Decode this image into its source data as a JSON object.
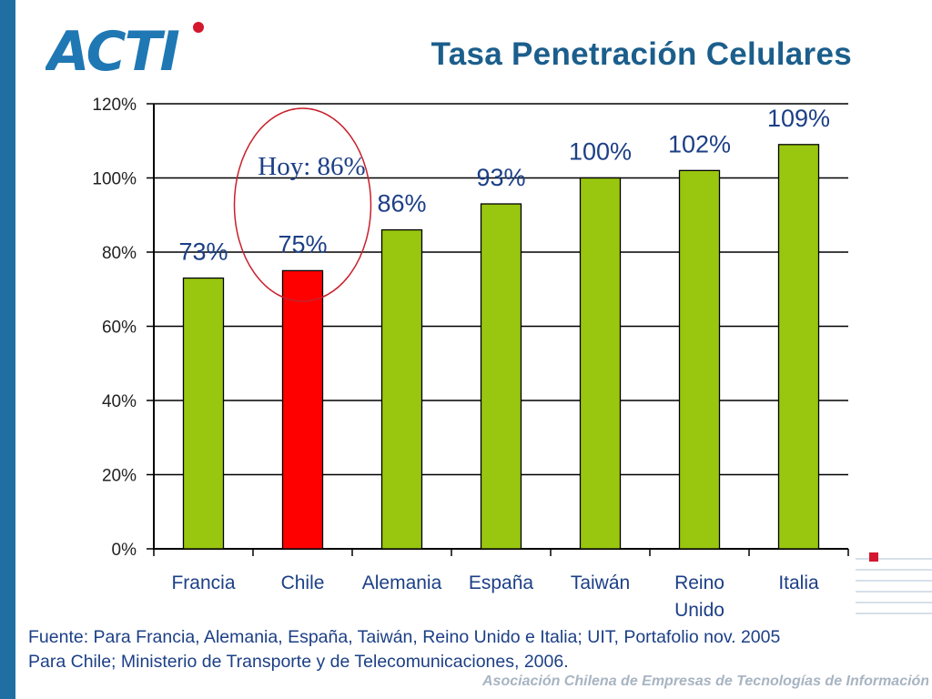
{
  "slide": {
    "title": "Tasa Penetración Celulares",
    "logo_text": "ACTI",
    "source_line1": "Fuente: Para Francia, Alemania, España, Taiwán, Reino Unido e Italia; UIT, Portafolio nov. 2005",
    "source_line2": "Para Chile; Ministerio de Transporte y de Telecomunicaciones, 2006.",
    "footer": "Asociación Chilena de Empresas de Tecnologías de Información A.G."
  },
  "colors": {
    "default_bar": "#99c60f",
    "highlight_bar": "#ff0000",
    "title": "#1b5e8c",
    "label": "#1c3f86",
    "annotation_circle": "#c8202c",
    "accent": "#d3172e"
  },
  "chart_data": {
    "type": "bar",
    "categories": [
      "Francia",
      "Chile",
      "Alemania",
      "España",
      "Taiwán",
      "Reino Unido",
      "Italia"
    ],
    "values": [
      73,
      75,
      86,
      93,
      100,
      102,
      109
    ],
    "data_labels": [
      "73%",
      "75%",
      "86%",
      "93%",
      "100%",
      "102%",
      "109%"
    ],
    "highlight_category": "Chile",
    "ylim": [
      0,
      120
    ],
    "yticks": [
      0,
      20,
      40,
      60,
      80,
      100,
      120
    ],
    "ytick_labels": [
      "0%",
      "20%",
      "40%",
      "60%",
      "80%",
      "100%",
      "120%"
    ],
    "grid": true,
    "legend": "none",
    "annotation": {
      "text": "Hoy: 86%",
      "target": "Chile"
    }
  }
}
